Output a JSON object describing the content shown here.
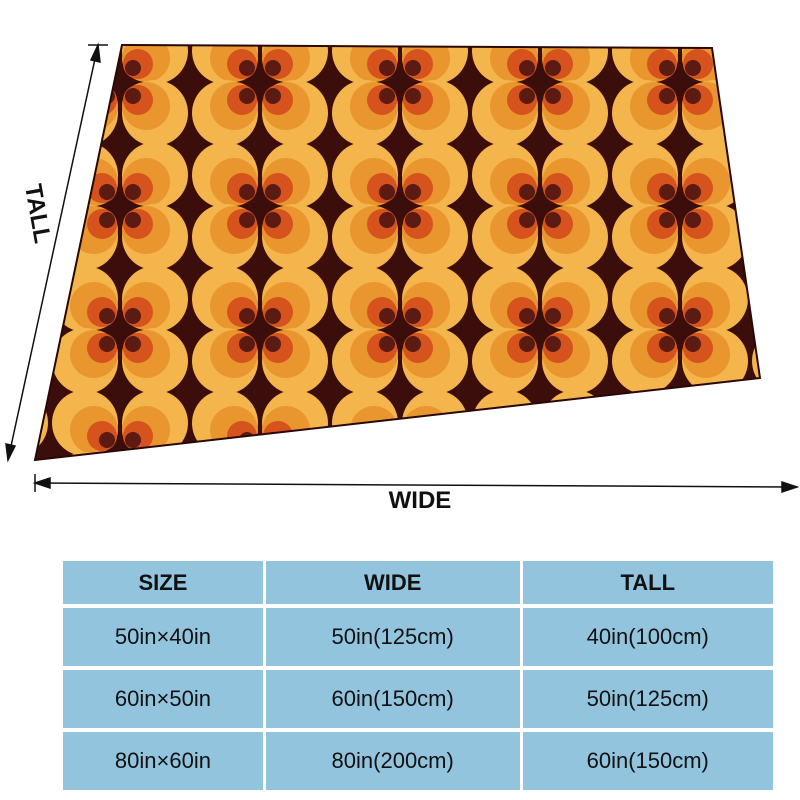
{
  "dimensions": {
    "tall": "TALL",
    "wide": "WIDE"
  },
  "table": {
    "header": [
      "SIZE",
      "WIDE",
      "TALL"
    ],
    "rows": [
      [
        "50in×40in",
        "50in(125cm)",
        "40in(100cm)"
      ],
      [
        "60in×50in",
        "60in(150cm)",
        "50in(125cm)"
      ],
      [
        "80in×60in",
        "80in(200cm)",
        "60in(150cm)"
      ]
    ]
  }
}
